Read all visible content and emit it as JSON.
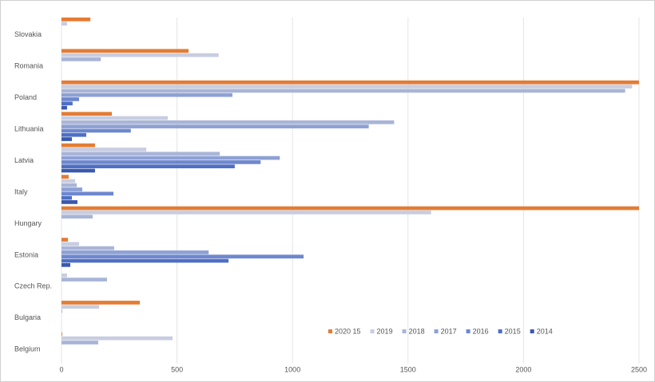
{
  "chart_data": {
    "type": "bar",
    "orientation": "horizontal",
    "categories": [
      "Slovakia",
      "Romania",
      "Poland",
      "Lithuania",
      "Latvia",
      "Italy",
      "Hungary",
      "Estonia",
      "Czech Rep.",
      "Bulgaria",
      "Belgium"
    ],
    "series": [
      {
        "name": "2020 15",
        "color": "#e37c35",
        "values": [
          125,
          550,
          2500,
          218,
          145,
          31,
          2500,
          28,
          0,
          339,
          3
        ]
      },
      {
        "name": "2019",
        "color": "#c8cde0",
        "values": [
          24,
          680,
          2470,
          460,
          367,
          59,
          1600,
          76,
          24,
          163,
          481
        ]
      },
      {
        "name": "2018",
        "color": "#a9b5d7",
        "values": [
          0,
          170,
          2440,
          1440,
          685,
          66,
          135,
          228,
          197,
          3,
          159
        ]
      },
      {
        "name": "2017",
        "color": "#8ea1d4",
        "values": [
          0,
          0,
          740,
          1330,
          945,
          90,
          0,
          637,
          0,
          0,
          0
        ]
      },
      {
        "name": "2016",
        "color": "#6e88cf",
        "values": [
          0,
          0,
          76,
          300,
          862,
          225,
          0,
          1048,
          0,
          0,
          0
        ]
      },
      {
        "name": "2015",
        "color": "#4f6fc4",
        "values": [
          0,
          0,
          48,
          107,
          750,
          45,
          0,
          723,
          0,
          0,
          0
        ]
      },
      {
        "name": "2014",
        "color": "#3a58ad",
        "values": [
          0,
          0,
          24,
          45,
          145,
          69,
          0,
          38,
          0,
          0,
          0
        ]
      }
    ],
    "xlim": [
      0,
      2500
    ],
    "xticks": [
      0,
      500,
      1000,
      1500,
      2000,
      2500
    ],
    "grid": true
  }
}
